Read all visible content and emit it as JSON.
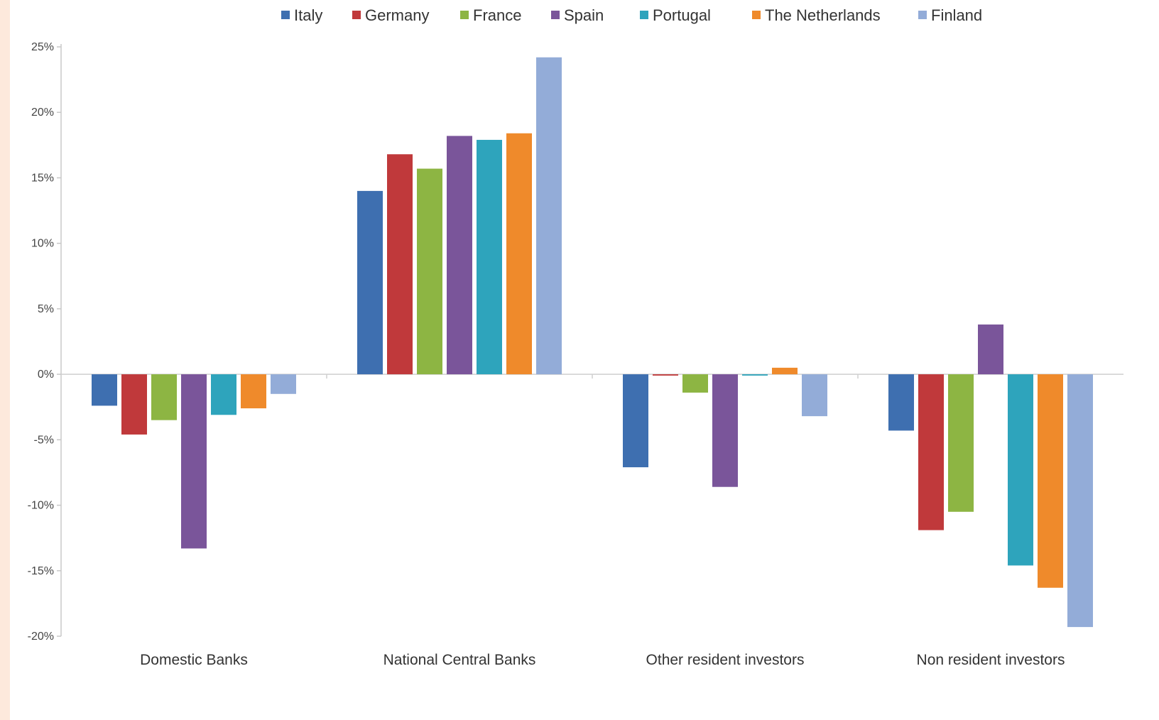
{
  "chart_data": {
    "type": "bar",
    "title": "",
    "xlabel": "",
    "ylabel": "",
    "categories": [
      "Domestic Banks",
      "National Central Banks",
      "Other resident investors",
      "Non resident investors"
    ],
    "ylim": [
      -20,
      25
    ],
    "yticks": [
      25,
      20,
      15,
      10,
      5,
      0,
      -5,
      -10,
      -15,
      -20
    ],
    "ytick_labels": [
      "25%",
      "20%",
      "15%",
      "10%",
      "5%",
      "0%",
      "-5%",
      "-10%",
      "-15%",
      "-20%"
    ],
    "grid": false,
    "legend_position": "top",
    "series": [
      {
        "name": "Italy",
        "color": "#3e6fb0",
        "values": [
          -2.4,
          14.0,
          -7.1,
          -4.3
        ]
      },
      {
        "name": "Germany",
        "color": "#c0393b",
        "values": [
          -4.6,
          16.8,
          -0.1,
          -11.9
        ]
      },
      {
        "name": "France",
        "color": "#8db543",
        "values": [
          -3.5,
          15.7,
          -1.4,
          -10.5
        ]
      },
      {
        "name": "Spain",
        "color": "#7a559a",
        "values": [
          -13.3,
          18.2,
          -8.6,
          3.8
        ]
      },
      {
        "name": "Portugal",
        "color": "#2ea4bc",
        "values": [
          -3.1,
          17.9,
          -0.1,
          -14.6
        ]
      },
      {
        "name": "The Netherlands",
        "color": "#ef8a2b",
        "values": [
          -2.6,
          18.4,
          0.5,
          -16.3
        ]
      },
      {
        "name": "Finland",
        "color": "#93acd8",
        "values": [
          -1.5,
          24.2,
          -3.2,
          -19.3
        ]
      }
    ]
  }
}
